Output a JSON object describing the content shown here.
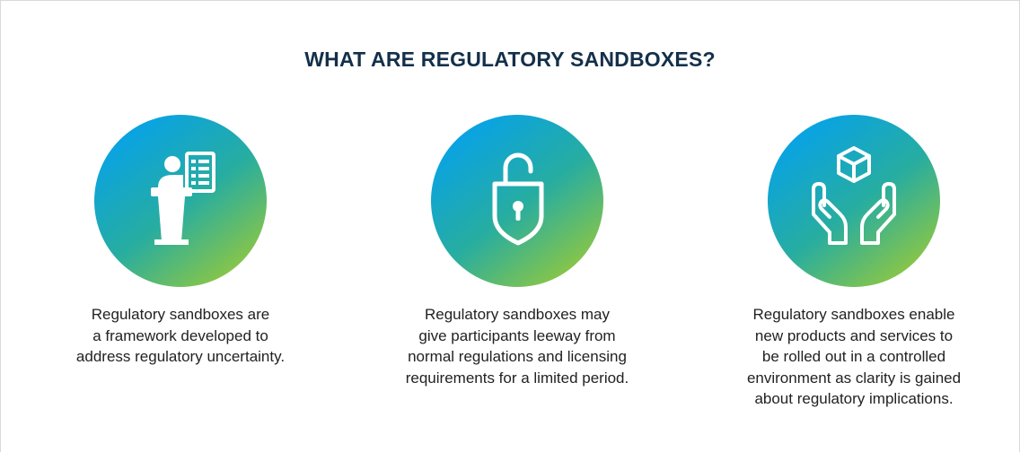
{
  "title": "WHAT ARE REGULATORY SANDBOXES?",
  "items": [
    {
      "lines": [
        "Regulatory sandboxes are",
        "a framework developed to",
        "address regulatory uncertainty."
      ]
    },
    {
      "lines": [
        "Regulatory sandboxes may",
        "give participants leeway from",
        "normal regulations and licensing",
        "requirements for a limited period."
      ]
    },
    {
      "lines": [
        "Regulatory sandboxes enable",
        "new products and services to",
        "be rolled out in a controlled",
        "environment as clarity is gained",
        "about regulatory implications."
      ]
    }
  ]
}
